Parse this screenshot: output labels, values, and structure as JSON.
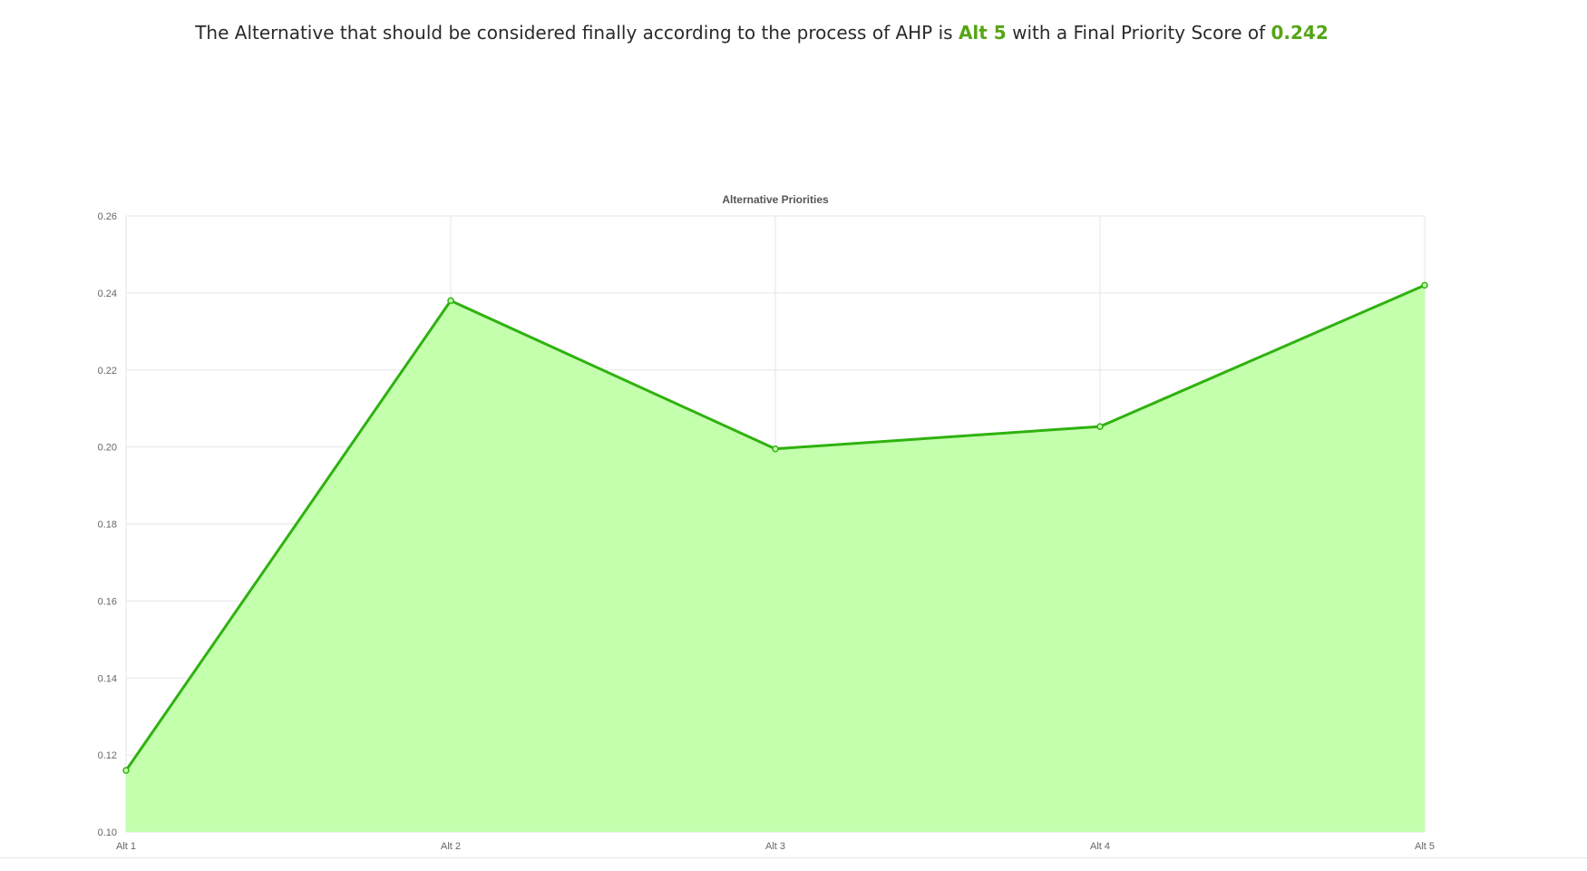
{
  "summary": {
    "prefix": "The Alternative that should be considered finally according to the process of AHP is",
    "alternative": "Alt 5",
    "middle": "with a Final Priority Score of",
    "score": "0.242"
  },
  "colors": {
    "accent": "#55a514",
    "line": "#2fb20f",
    "fill": "#c4ffae",
    "grid": "#e5e5e5",
    "text": "#2b2b2b"
  },
  "chart_data": {
    "type": "area",
    "title": "Alternative Priorities",
    "categories": [
      "Alt 1",
      "Alt 2",
      "Alt 3",
      "Alt 4",
      "Alt 5"
    ],
    "values": [
      0.116,
      0.238,
      0.1995,
      0.2053,
      0.242
    ],
    "ylim": [
      0.1,
      0.26
    ],
    "yticks": [
      "0.10",
      "0.12",
      "0.14",
      "0.16",
      "0.18",
      "0.20",
      "0.22",
      "0.24",
      "0.26"
    ],
    "xlabel": "",
    "ylabel": "",
    "grid": true,
    "legend": "none"
  }
}
